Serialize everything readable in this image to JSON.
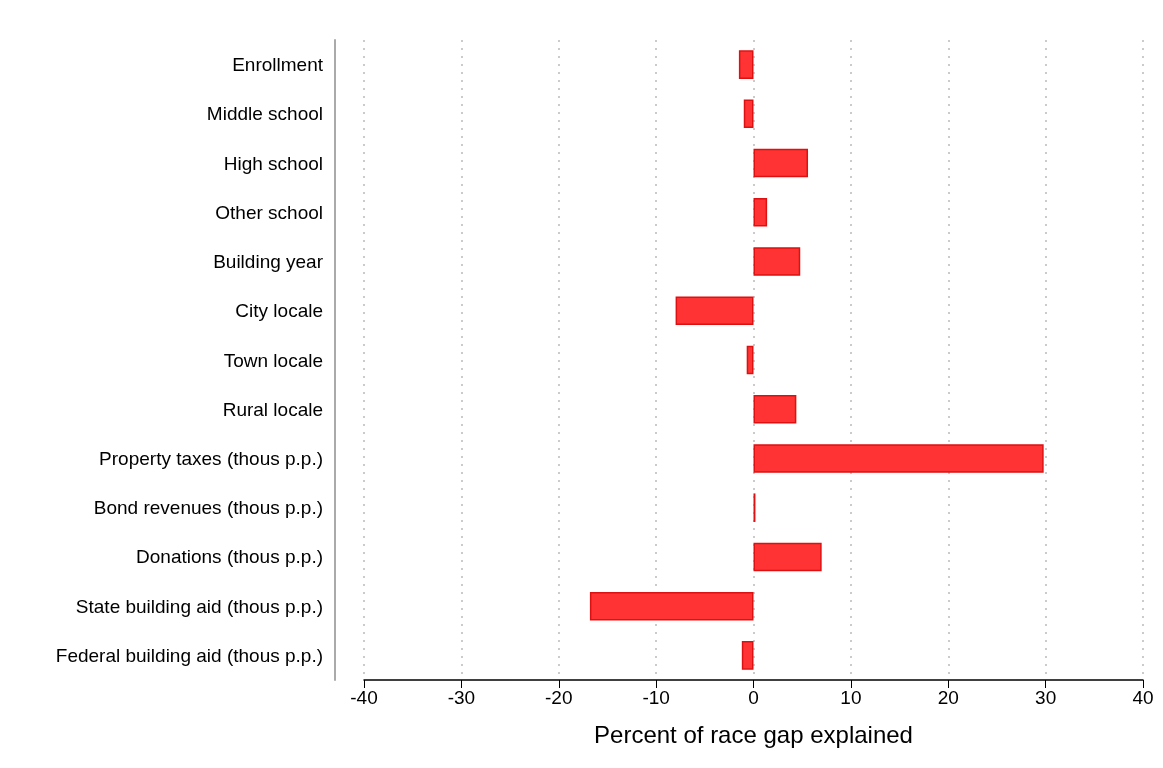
{
  "chart_data": {
    "type": "bar",
    "orientation": "horizontal",
    "categories": [
      "Enrollment",
      "Middle school",
      "High school",
      "Other school",
      "Building year",
      "City locale",
      "Town locale",
      "Rural locale",
      "Property taxes (thous p.p.)",
      "Bond revenues (thous p.p.)",
      "Donations (thous p.p.)",
      "State building aid (thous p.p.)",
      "Federal building aid (thous p.p.)"
    ],
    "values": [
      -1.5,
      -1.0,
      5.6,
      1.4,
      4.8,
      -8.0,
      -0.7,
      4.4,
      29.8,
      0.2,
      7.0,
      -16.8,
      -1.2
    ],
    "color": "#ff3333",
    "xlabel": "Percent of race gap explained",
    "xlim": [
      -40,
      40
    ],
    "xticks": [
      -40,
      -30,
      -20,
      -10,
      0,
      10,
      20,
      30,
      40
    ],
    "grid": "x"
  }
}
